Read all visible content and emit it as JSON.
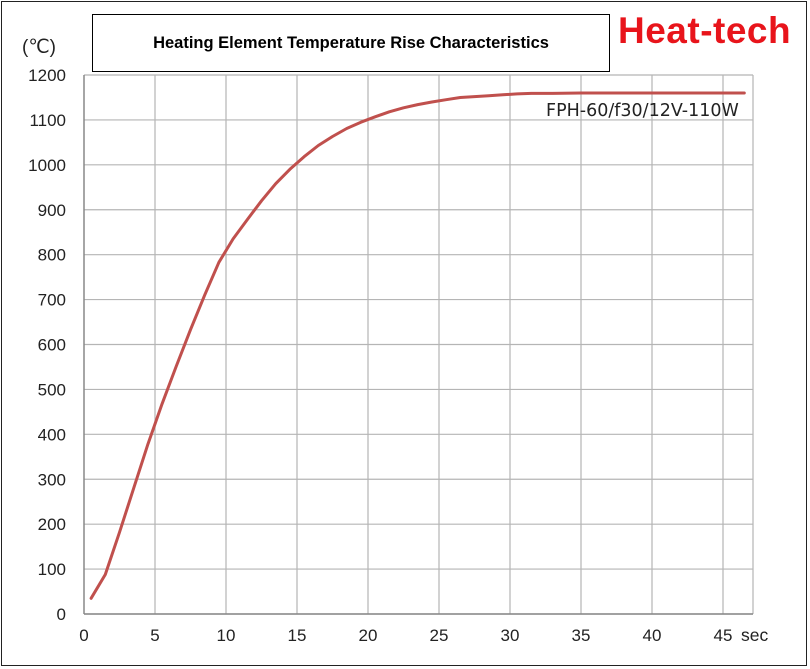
{
  "brand": "Heat-tech",
  "colors": {
    "brand": "#e8141b",
    "line": "#c0504d",
    "grid": "#b5b5b5"
  },
  "chart_data": {
    "type": "line",
    "title": "Heating Element Temperature Rise Characteristics",
    "ylabel": "(℃)",
    "xlabel": "sec",
    "xlim": [
      0,
      47.5
    ],
    "ylim": [
      0,
      1200
    ],
    "grid": true,
    "yticks": [
      0,
      100,
      200,
      300,
      400,
      500,
      600,
      700,
      800,
      900,
      1000,
      1100,
      1200
    ],
    "xticks": [
      0,
      5,
      10,
      15,
      20,
      25,
      30,
      35,
      40,
      45
    ],
    "series": [
      {
        "name": "FPH-60/f30/12V-110W",
        "x": [
          0.5,
          1.5,
          2.5,
          3.5,
          4.5,
          5.5,
          6.5,
          7.5,
          8.5,
          9.5,
          10.5,
          11.5,
          12.5,
          13.5,
          14.5,
          15.5,
          16.5,
          17.5,
          18.5,
          19.5,
          20.5,
          21.5,
          22.5,
          23.5,
          24.5,
          25.5,
          26.5,
          27.5,
          28.5,
          29.5,
          30.5,
          31.5,
          33,
          35,
          37,
          40,
          43,
          45,
          46.5
        ],
        "values": [
          35,
          88,
          182,
          280,
          378,
          468,
          552,
          633,
          710,
          783,
          835,
          878,
          920,
          958,
          990,
          1018,
          1043,
          1063,
          1081,
          1095,
          1107,
          1118,
          1127,
          1134,
          1140,
          1145,
          1150,
          1152,
          1154,
          1156,
          1158,
          1159,
          1159,
          1160,
          1160,
          1160,
          1160,
          1160,
          1160
        ]
      }
    ]
  }
}
